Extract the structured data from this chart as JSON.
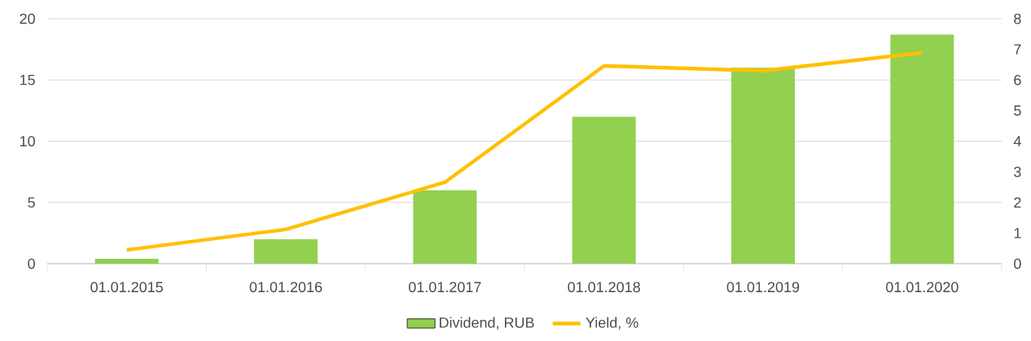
{
  "chart_data": {
    "type": "bar",
    "categories": [
      "01.01.2015",
      "01.01.2016",
      "01.01.2017",
      "01.01.2018",
      "01.01.2019",
      "01.01.2020"
    ],
    "series": [
      {
        "name": "Dividend, RUB",
        "color": "#92d050",
        "values": [
          0.4,
          2,
          6,
          12,
          16,
          18.7
        ]
      },
      {
        "name": "Yield, %",
        "type": "line",
        "axis": "y2",
        "color": "#ffc000",
        "values": [
          0.45,
          1.12,
          2.66,
          6.46,
          6.3,
          6.89
        ]
      }
    ],
    "ylim": [
      0,
      20
    ],
    "yticks": [
      0,
      5,
      10,
      15,
      20
    ],
    "y2lim": [
      0,
      8
    ],
    "y2ticks": [
      0,
      1,
      2,
      3,
      4,
      5,
      6,
      7,
      8
    ],
    "grid": "y",
    "legend": "bottom"
  }
}
